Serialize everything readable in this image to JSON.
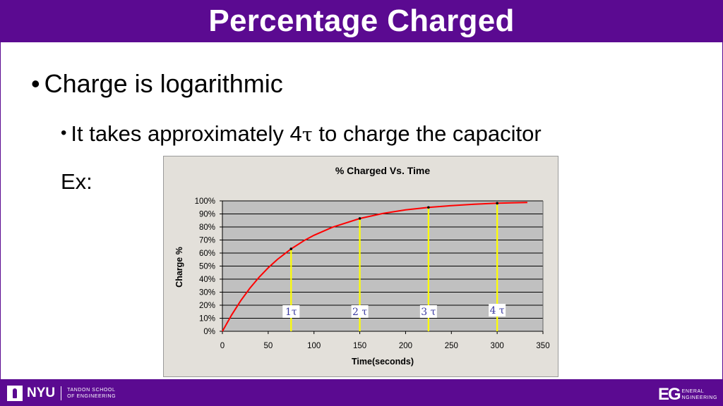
{
  "slide": {
    "title": "Percentage Charged",
    "bullet_1": "Charge is logarithmic",
    "bullet_2_prefix": "It takes approximately 4",
    "bullet_2_symbol": "τ",
    "bullet_2_suffix": " to charge the capacitor",
    "example_label": "Ex:",
    "bullet_glyph": "•"
  },
  "footer": {
    "left_logo_text": "NYU",
    "left_school_line_1": "TANDON SCHOOL",
    "left_school_line_2": "OF ENGINEERING",
    "right_logo_mark": "EG",
    "right_logo_line_1": "ENERAL",
    "right_logo_line_2": "NGINEERING"
  },
  "colors": {
    "purple": "#5b0a91",
    "curve": "#ff0000",
    "markers": "#ffff00",
    "tau_label": "#3a3aa0",
    "plot_bg": "#c0c0c0"
  },
  "chart_data": {
    "type": "line",
    "title": "% Charged Vs. Time",
    "xlabel": "Time(seconds)",
    "ylabel": "Charge %",
    "xlim": [
      0,
      350
    ],
    "ylim": [
      0,
      100
    ],
    "x_ticks": [
      0,
      50,
      100,
      150,
      200,
      250,
      300,
      350
    ],
    "y_ticks": [
      0,
      10,
      20,
      30,
      40,
      50,
      60,
      70,
      80,
      90,
      100
    ],
    "y_tick_labels": [
      "0%",
      "10%",
      "20%",
      "30%",
      "40%",
      "50%",
      "60%",
      "70%",
      "80%",
      "90%",
      "100%"
    ],
    "grid": true,
    "legend": "none",
    "series": [
      {
        "x": [
          0,
          10,
          20,
          30,
          40,
          50,
          60,
          75,
          90,
          100,
          120,
          150,
          175,
          200,
          225,
          250,
          275,
          300,
          320,
          333
        ],
        "values": [
          0,
          12.5,
          23.4,
          33.0,
          41.4,
          48.7,
          55.1,
          63.2,
          69.9,
          73.6,
          79.8,
          86.5,
          90.3,
          93.1,
          95.0,
          96.4,
          97.4,
          98.2,
          98.6,
          98.8
        ]
      }
    ],
    "tau_markers": [
      {
        "x": 75,
        "y": 63.2,
        "label": "1τ"
      },
      {
        "x": 150,
        "y": 86.5,
        "label": "2 τ"
      },
      {
        "x": 225,
        "y": 95.0,
        "label": "3 τ"
      },
      {
        "x": 300,
        "y": 98.2,
        "label": "4 τ"
      }
    ]
  }
}
